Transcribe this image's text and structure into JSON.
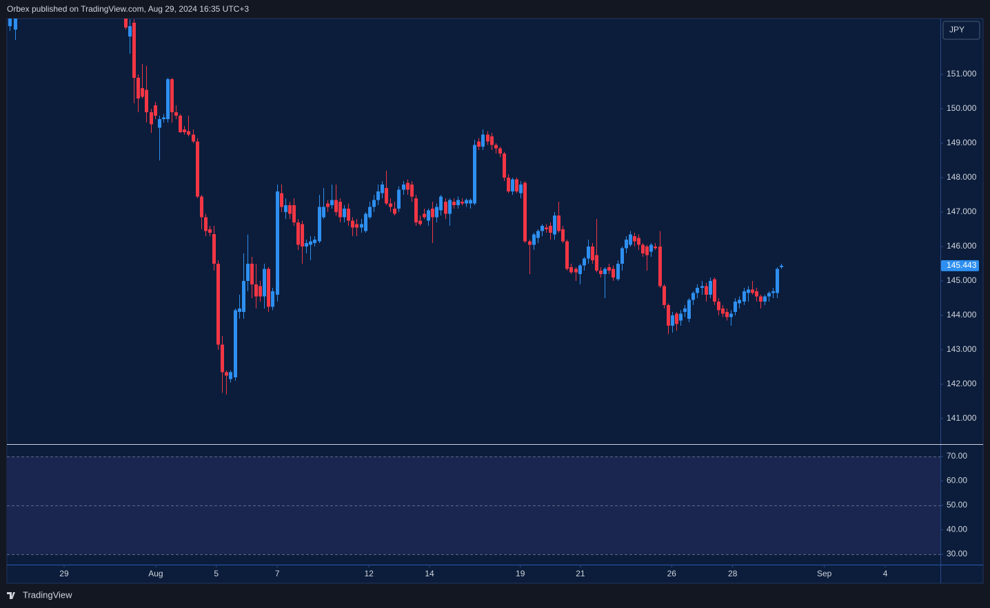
{
  "header": "Orbex published on TradingView.com, Aug 29, 2024 16:35 UTC+3",
  "footer": "TradingView",
  "chart_data": [
    {
      "type": "candlestick",
      "currency": "JPY",
      "up_color": "#2e8ff0",
      "down_color": "#f23645",
      "last_price": {
        "value": 145.443,
        "label": "145.443"
      },
      "xlim": [
        -28.2,
        193.8
      ],
      "xticks": [
        {
          "value": -14.6,
          "label": "29"
        },
        {
          "value": 7.2,
          "label": "Aug"
        },
        {
          "value": 21.6,
          "label": "5"
        },
        {
          "value": 36.1,
          "label": "7"
        },
        {
          "value": 57.9,
          "label": "12"
        },
        {
          "value": 72.3,
          "label": "14"
        },
        {
          "value": 93.9,
          "label": "19"
        },
        {
          "value": 108.2,
          "label": "21"
        },
        {
          "value": 129.9,
          "label": "26"
        },
        {
          "value": 144.4,
          "label": "28"
        },
        {
          "value": 166.2,
          "label": "Sep"
        },
        {
          "value": 180.7,
          "label": "4"
        }
      ],
      "ylim": [
        140.26,
        152.62
      ],
      "yticks": [
        {
          "value": 141,
          "label": "141.000"
        },
        {
          "value": 142,
          "label": "142.000"
        },
        {
          "value": 143,
          "label": "143.000"
        },
        {
          "value": 144,
          "label": "144.000"
        },
        {
          "value": 145,
          "label": "145.000"
        },
        {
          "value": 146,
          "label": "146.000"
        },
        {
          "value": 147,
          "label": "147.000"
        },
        {
          "value": 148,
          "label": "148.000"
        },
        {
          "value": 149,
          "label": "149.000"
        },
        {
          "value": 150,
          "label": "150.000"
        },
        {
          "value": 151,
          "label": "151.000"
        }
      ],
      "x": [
        -27.5,
        -26.2,
        0,
        1,
        2,
        3,
        4,
        5,
        6,
        7,
        8,
        9,
        10,
        11,
        12,
        13,
        14,
        15,
        16,
        17,
        18,
        19,
        20,
        21,
        22,
        23,
        24,
        25,
        26,
        27,
        28,
        29,
        30,
        31,
        32,
        33,
        34,
        35,
        36,
        37,
        38,
        39,
        40,
        41,
        42,
        43,
        44,
        45,
        46,
        47,
        48,
        49,
        50,
        51,
        52,
        53,
        54,
        55,
        56,
        57,
        58,
        59,
        60,
        61,
        62,
        63,
        64,
        65,
        66,
        67,
        68,
        69,
        70,
        71,
        72,
        73,
        74,
        75,
        76,
        77,
        78,
        79,
        80,
        81,
        82,
        83,
        84,
        85,
        86,
        87,
        88,
        89,
        90,
        91,
        92,
        93,
        94,
        95,
        96,
        97,
        98,
        99,
        100,
        101,
        102,
        103,
        104,
        105,
        106,
        107,
        108,
        109,
        110,
        111,
        112,
        113,
        114,
        115,
        116,
        117,
        118,
        119,
        120,
        121,
        122,
        123,
        124,
        125,
        126,
        127,
        128,
        129,
        130,
        131,
        132,
        133,
        134,
        135,
        136,
        137,
        138,
        139,
        140,
        141,
        142,
        143,
        144,
        145,
        146,
        147,
        148,
        149,
        150,
        151,
        152,
        153,
        154,
        155,
        156
      ],
      "open": [
        152.4,
        152.3,
        152.7,
        152.1,
        152.5,
        150.9,
        150.6,
        150.55,
        149.9,
        150.1,
        149.45,
        149.7,
        149.7,
        150.86,
        149.9,
        149.8,
        149.4,
        149.35,
        149.25,
        149.05,
        147.45,
        146.85,
        146.5,
        146.36,
        145.5,
        143.15,
        142.35,
        142.15,
        142.2,
        144.1,
        144.1,
        145.0,
        145.5,
        144.9,
        144.85,
        144.55,
        145.35,
        144.25,
        144.6,
        147.55,
        147.0,
        147.2,
        147.2,
        146.7,
        146.65,
        146.0,
        146.05,
        146.1,
        146.15,
        146.85,
        147.25,
        147.2,
        147.35,
        147.3,
        146.85,
        147.1,
        146.75,
        146.65,
        146.55,
        146.45,
        146.85,
        147.15,
        147.35,
        147.55,
        147.7,
        147.25,
        147.1,
        147.1,
        147.65,
        147.85,
        147.8,
        147.4,
        146.75,
        146.95,
        146.75,
        147.1,
        146.85,
        147.05,
        147.3,
        146.95,
        147.3,
        147.2,
        147.3,
        147.25,
        147.25,
        147.25,
        149.05,
        148.9,
        149.25,
        149.2,
        148.95,
        148.85,
        148.7,
        148.0,
        147.6,
        147.95,
        147.55,
        147.85,
        146.15,
        146.05,
        146.25,
        146.45,
        146.55,
        146.6,
        146.35,
        146.9,
        146.5,
        146.15,
        145.4,
        145.35,
        145.2,
        145.45,
        145.65,
        146.0,
        145.75,
        145.3,
        145.2,
        145.4,
        145.35,
        145.05,
        145.5,
        145.95,
        146.05,
        146.3,
        146.25,
        146.05,
        146.0,
        145.85,
        146.0,
        146.0,
        144.85,
        144.3,
        143.7,
        144.05,
        143.85,
        144.1,
        143.9,
        144.45,
        144.65,
        144.8,
        144.85,
        144.6,
        145.05,
        144.4,
        144.2,
        144.1,
        143.95,
        144.1,
        144.35,
        144.4,
        144.65,
        144.75,
        144.7,
        144.55,
        144.4,
        144.55,
        144.65,
        144.65,
        145.4
      ],
      "high": [
        153.0,
        153.0,
        152.8,
        152.6,
        152.6,
        151.0,
        151.3,
        151.25,
        150.0,
        150.2,
        149.8,
        149.85,
        150.9,
        150.9,
        150.1,
        149.85,
        149.5,
        149.8,
        149.4,
        149.15,
        147.5,
        146.95,
        146.6,
        146.6,
        145.6,
        143.4,
        142.4,
        142.4,
        144.2,
        144.6,
        145.8,
        146.35,
        145.7,
        145.5,
        145.0,
        145.5,
        145.4,
        144.8,
        147.8,
        147.8,
        147.4,
        147.3,
        147.4,
        146.8,
        146.75,
        146.2,
        146.3,
        146.3,
        147.5,
        147.7,
        147.35,
        147.8,
        147.8,
        147.4,
        147.2,
        147.25,
        146.85,
        146.8,
        146.8,
        147.0,
        147.3,
        147.5,
        147.8,
        147.9,
        148.2,
        147.4,
        147.3,
        147.75,
        147.9,
        147.95,
        147.9,
        147.5,
        146.9,
        147.1,
        147.1,
        147.3,
        147.25,
        147.5,
        147.4,
        147.4,
        147.4,
        147.45,
        147.4,
        147.4,
        147.4,
        149.1,
        149.15,
        149.4,
        149.35,
        149.3,
        149.0,
        148.9,
        148.75,
        148.1,
        148.0,
        148.0,
        147.9,
        147.9,
        146.2,
        146.4,
        146.5,
        146.65,
        146.65,
        146.7,
        147.0,
        147.3,
        146.6,
        146.2,
        145.5,
        145.4,
        145.5,
        145.7,
        146.2,
        146.1,
        146.8,
        145.4,
        145.4,
        145.5,
        145.45,
        145.6,
        146.0,
        146.3,
        146.45,
        146.4,
        146.35,
        146.1,
        146.05,
        146.1,
        146.1,
        146.45,
        144.9,
        144.35,
        144.1,
        144.1,
        144.15,
        144.3,
        144.5,
        144.7,
        144.9,
        145.0,
        144.95,
        145.1,
        145.1,
        144.5,
        144.3,
        144.2,
        144.15,
        144.5,
        144.55,
        144.8,
        144.85,
        145.0,
        144.8,
        144.6,
        144.6,
        144.7,
        144.8,
        145.4,
        145.5
      ],
      "low": [
        152.26,
        152.0,
        152.3,
        151.6,
        150.16,
        149.9,
        150.3,
        149.6,
        149.3,
        149.7,
        148.5,
        149.6,
        149.6,
        149.6,
        149.7,
        149.3,
        149.25,
        149.2,
        149.0,
        147.4,
        146.5,
        146.3,
        146.3,
        145.3,
        143.0,
        141.75,
        141.7,
        142.05,
        142.1,
        143.9,
        143.9,
        144.7,
        144.5,
        144.2,
        144.4,
        144.2,
        144.1,
        144.15,
        144.4,
        147.0,
        146.8,
        146.8,
        146.6,
        145.9,
        145.5,
        145.8,
        145.6,
        146.0,
        146.1,
        146.8,
        147.0,
        147.1,
        146.9,
        146.7,
        146.7,
        146.6,
        146.3,
        146.3,
        146.4,
        146.4,
        146.8,
        147.0,
        147.2,
        147.4,
        147.2,
        147.0,
        146.9,
        147.0,
        147.5,
        147.5,
        147.3,
        146.6,
        146.6,
        146.8,
        146.6,
        146.1,
        146.7,
        146.9,
        146.8,
        146.6,
        147.1,
        147.1,
        147.2,
        147.15,
        147.1,
        147.2,
        148.8,
        148.8,
        148.95,
        148.8,
        148.7,
        148.6,
        147.9,
        147.55,
        147.5,
        147.55,
        147.4,
        146.1,
        145.2,
        145.9,
        146.1,
        146.3,
        146.4,
        146.2,
        146.2,
        146.4,
        146.1,
        145.3,
        145.2,
        145.0,
        144.9,
        145.3,
        145.5,
        145.5,
        145.25,
        145.1,
        144.5,
        145.2,
        145.0,
        145.0,
        145.3,
        145.8,
        146.0,
        146.0,
        145.9,
        145.7,
        145.3,
        145.7,
        145.9,
        144.8,
        144.2,
        143.45,
        143.5,
        143.55,
        143.7,
        143.95,
        143.8,
        144.3,
        144.5,
        144.6,
        144.4,
        144.5,
        144.3,
        144.0,
        143.95,
        143.85,
        143.7,
        144.0,
        144.2,
        144.3,
        144.4,
        144.6,
        144.4,
        144.2,
        144.3,
        144.4,
        144.5,
        144.5,
        145.35
      ],
      "close": [
        152.9,
        152.8,
        152.36,
        152.4,
        150.9,
        150.3,
        150.35,
        149.9,
        149.55,
        149.8,
        149.7,
        149.75,
        150.86,
        149.9,
        149.8,
        149.32,
        149.32,
        149.25,
        149.05,
        147.45,
        146.85,
        146.45,
        146.4,
        145.5,
        143.15,
        142.35,
        142.25,
        142.35,
        144.15,
        144.2,
        145.0,
        145.5,
        144.9,
        144.55,
        144.55,
        145.35,
        144.25,
        144.7,
        147.6,
        147.15,
        147.2,
        146.95,
        146.7,
        146.05,
        146.0,
        146.1,
        146.15,
        146.2,
        147.15,
        147.15,
        147.15,
        147.35,
        147.0,
        146.85,
        147.1,
        146.75,
        146.55,
        146.55,
        146.65,
        146.95,
        147.15,
        147.35,
        147.6,
        147.8,
        147.25,
        147.15,
        146.95,
        147.65,
        147.8,
        147.65,
        147.45,
        146.7,
        146.65,
        146.85,
        147.05,
        146.85,
        147.15,
        147.45,
        146.95,
        147.35,
        147.2,
        147.35,
        147.25,
        147.35,
        147.35,
        148.95,
        148.9,
        149.25,
        149.05,
        148.95,
        148.85,
        148.7,
        148.0,
        147.6,
        147.95,
        147.6,
        147.8,
        146.15,
        146.05,
        146.35,
        146.45,
        146.6,
        146.5,
        146.4,
        146.9,
        146.45,
        146.15,
        145.35,
        145.25,
        145.25,
        145.45,
        145.65,
        146.0,
        145.6,
        145.3,
        145.2,
        145.35,
        145.3,
        145.1,
        145.5,
        145.95,
        146.2,
        146.35,
        146.15,
        146.05,
        145.8,
        145.75,
        146.05,
        145.95,
        144.85,
        144.3,
        143.7,
        144.0,
        143.75,
        144.05,
        144.2,
        144.45,
        144.65,
        144.8,
        144.85,
        144.6,
        145.0,
        144.4,
        144.15,
        144.05,
        143.95,
        144.05,
        144.4,
        144.45,
        144.7,
        144.75,
        144.65,
        144.55,
        144.4,
        144.55,
        144.65,
        144.7,
        145.35,
        145.443
      ]
    },
    {
      "type": "band",
      "band_color": "#1a2650",
      "level_color": "#5d6b8a",
      "ylim": [
        25.8,
        74.75
      ],
      "yticks": [
        {
          "value": 30,
          "label": "30.00"
        },
        {
          "value": 40,
          "label": "40.00"
        },
        {
          "value": 50,
          "label": "50.00"
        },
        {
          "value": 60,
          "label": "60.00"
        },
        {
          "value": 70,
          "label": "70.00"
        }
      ],
      "levels": [
        70,
        50,
        30
      ]
    }
  ]
}
